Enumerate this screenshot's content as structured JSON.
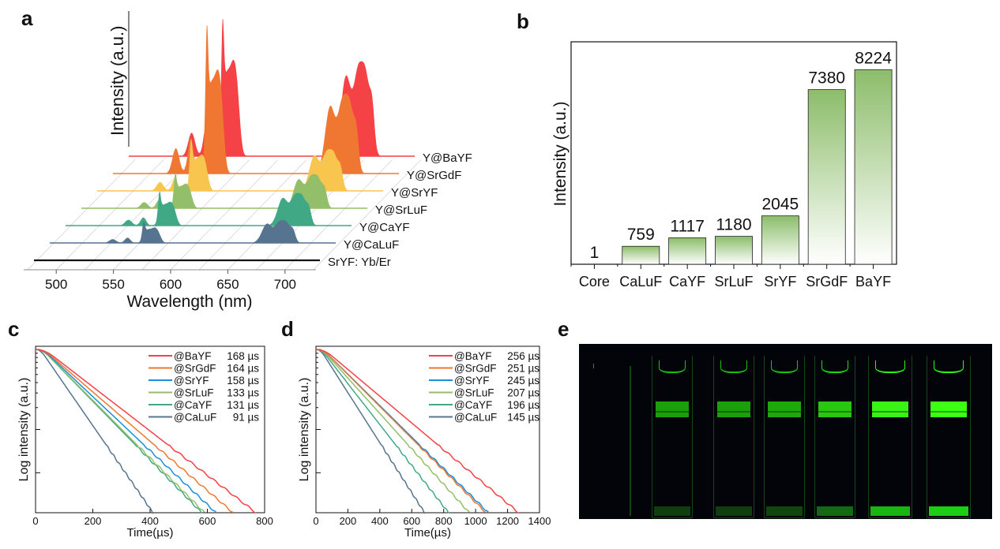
{
  "panels": {
    "a": {
      "letter": "a"
    },
    "b": {
      "letter": "b"
    },
    "c": {
      "letter": "c"
    },
    "d": {
      "letter": "d"
    },
    "e": {
      "letter": "e"
    }
  },
  "colors": {
    "BaYF": "#f44246",
    "SrGdF": "#f07732",
    "SrYF": "#f8c64e",
    "SrLuF": "#93bf6a",
    "CaYF": "#41a886",
    "CaLuF": "#56748f",
    "Core": "#111111",
    "SrYF_decay": "#1a8fd8",
    "bar_top": "#8cbd6a"
  },
  "chart_data": [
    {
      "id": "a",
      "type": "area",
      "title": "",
      "xlabel": "Wavelength (nm)",
      "ylabel": "Intensity (a.u.)",
      "xlim": [
        475,
        725
      ],
      "xticks": [
        "500",
        "550",
        "600",
        "650",
        "700"
      ],
      "series": [
        {
          "name": "SrYF: Yb/Er",
          "key": "Core",
          "green_scale": 0.0,
          "red_scale": 0.0
        },
        {
          "name": "Y@CaLuF",
          "key": "CaLuF",
          "green_scale": 0.2,
          "red_scale": 0.3
        },
        {
          "name": "Y@CaYF",
          "key": "CaYF",
          "green_scale": 0.31,
          "red_scale": 0.43
        },
        {
          "name": "Y@SrLuF",
          "key": "SrLuF",
          "green_scale": 0.32,
          "red_scale": 0.45
        },
        {
          "name": "Y@SrYF",
          "key": "SrYF",
          "green_scale": 0.47,
          "red_scale": 0.55
        },
        {
          "name": "Y@SrGdF",
          "key": "SrGdF",
          "green_scale": 1.35,
          "red_scale": 1.05
        },
        {
          "name": "Y@BaYF",
          "key": "BaYF",
          "green_scale": 1.25,
          "red_scale": 1.25
        }
      ]
    },
    {
      "id": "b",
      "type": "bar",
      "title": "",
      "xlabel": "",
      "ylabel": "Intensity (a.u.)",
      "categories": [
        "Core",
        "CaLuF",
        "CaYF",
        "SrLuF",
        "SrYF",
        "SrGdF",
        "BaYF"
      ],
      "values": [
        1,
        759,
        1117,
        1180,
        2045,
        7380,
        8224
      ],
      "value_labels": [
        "1",
        "759",
        "1117",
        "1180",
        "2045",
        "7380",
        "8224"
      ],
      "ylim": [
        0,
        9400
      ]
    },
    {
      "id": "c",
      "type": "line",
      "xlabel": "Time(µs)",
      "ylabel": "Log intensity (a.u.)",
      "xlim": [
        0,
        800
      ],
      "xticks": [
        "0",
        "200",
        "400",
        "600",
        "800"
      ],
      "series": [
        {
          "name": "@BaYF",
          "key": "BaYF",
          "lifetime": "168 µs",
          "end_time": 770
        },
        {
          "name": "@SrGdF",
          "key": "SrGdF",
          "lifetime": "164 µs",
          "end_time": 690
        },
        {
          "name": "@SrYF",
          "key": "SrYF_decay",
          "lifetime": "158 µs",
          "end_time": 630
        },
        {
          "name": "@SrLuF",
          "key": "SrLuF",
          "lifetime": "133 µs",
          "end_time": 590
        },
        {
          "name": "@CaYF",
          "key": "CaYF",
          "lifetime": "131 µs",
          "end_time": 580
        },
        {
          "name": "@CaLuF",
          "key": "CaLuF",
          "lifetime": "91 µs",
          "end_time": 410
        }
      ]
    },
    {
      "id": "d",
      "type": "line",
      "xlabel": "Time(µs)",
      "ylabel": "Log intensity (a.u.)",
      "xlim": [
        0,
        1400
      ],
      "xticks": [
        "0",
        "200",
        "400",
        "600",
        "800",
        "1000",
        "1200",
        "1400"
      ],
      "series": [
        {
          "name": "@BaYF",
          "key": "BaYF",
          "lifetime": "256 µs",
          "end_time": 1270
        },
        {
          "name": "@SrGdF",
          "key": "SrGdF",
          "lifetime": "251 µs",
          "end_time": 1065
        },
        {
          "name": "@SrYF",
          "key": "SrYF_decay",
          "lifetime": "245 µs",
          "end_time": 1080
        },
        {
          "name": "@SrLuF",
          "key": "SrLuF",
          "lifetime": "207 µs",
          "end_time": 960
        },
        {
          "name": "@CaYF",
          "key": "CaYF",
          "lifetime": "196 µs",
          "end_time": 830
        },
        {
          "name": "@CaLuF",
          "key": "CaLuF",
          "lifetime": "145 µs",
          "end_time": 680
        }
      ]
    }
  ],
  "photo_e": {
    "cuvettes": [
      {
        "brightness": 0.55
      },
      {
        "brightness": 0.55
      },
      {
        "brightness": 0.6
      },
      {
        "brightness": 0.75
      },
      {
        "brightness": 0.95
      },
      {
        "brightness": 1.0
      }
    ]
  }
}
